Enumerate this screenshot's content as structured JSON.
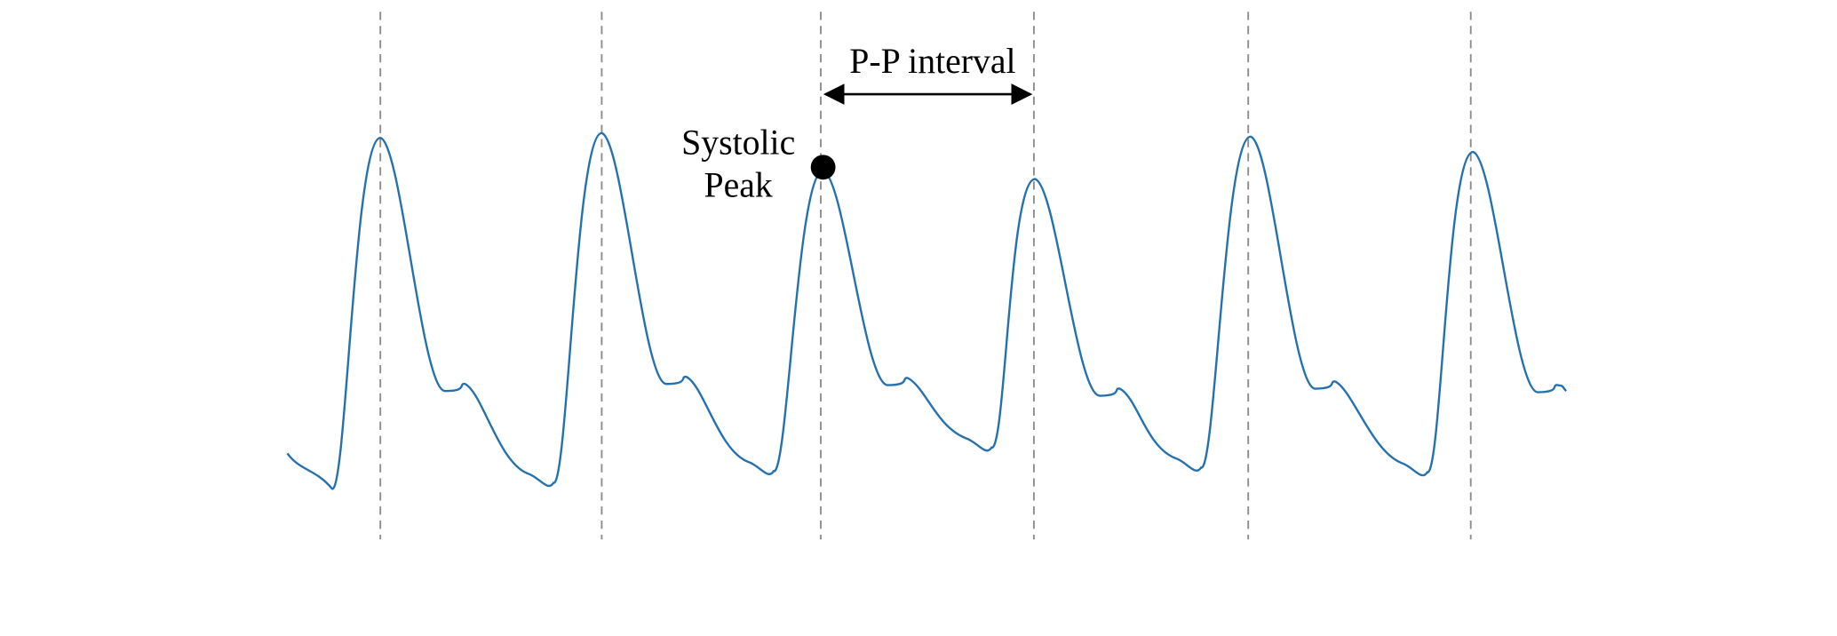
{
  "annotations": {
    "interval_label": "P-P interval",
    "peak_label": [
      "Systolic",
      "Peak"
    ]
  }
}
